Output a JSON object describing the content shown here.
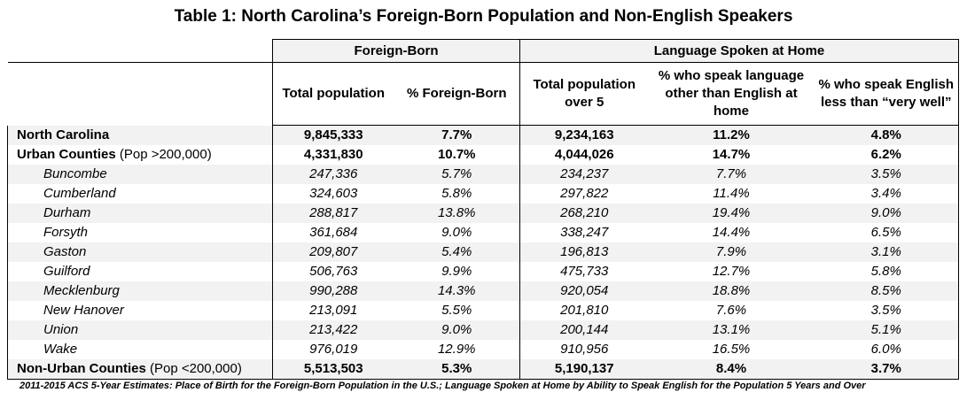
{
  "title": "Table 1: North Carolina’s Foreign-Born Population and Non-English Speakers",
  "groups": {
    "foreign_born": "Foreign-Born",
    "language": "Language Spoken at Home"
  },
  "columns": {
    "fb_total": "Total population",
    "fb_pct": "% Foreign-Born",
    "lang_total": "Total population over 5",
    "lang_other": "% who speak language other than English at home",
    "lang_less": "% who speak English less than “very well”"
  },
  "rows": [
    {
      "name": "North Carolina",
      "note": "",
      "bold": true,
      "values": [
        "9,845,333",
        "7.7%",
        "9,234,163",
        "11.2%",
        "4.8%"
      ]
    },
    {
      "name": "Urban Counties",
      "note": " (Pop >200,000)",
      "bold": true,
      "values": [
        "4,331,830",
        "10.7%",
        "4,044,026",
        "14.7%",
        "6.2%"
      ]
    },
    {
      "name": "Buncombe",
      "note": "",
      "bold": false,
      "values": [
        "247,336",
        "5.7%",
        "234,237",
        "7.7%",
        "3.5%"
      ]
    },
    {
      "name": "Cumberland",
      "note": "",
      "bold": false,
      "values": [
        "324,603",
        "5.8%",
        "297,822",
        "11.4%",
        "3.4%"
      ]
    },
    {
      "name": "Durham",
      "note": "",
      "bold": false,
      "values": [
        "288,817",
        "13.8%",
        "268,210",
        "19.4%",
        "9.0%"
      ]
    },
    {
      "name": "Forsyth",
      "note": "",
      "bold": false,
      "values": [
        "361,684",
        "9.0%",
        "338,247",
        "14.4%",
        "6.5%"
      ]
    },
    {
      "name": "Gaston",
      "note": "",
      "bold": false,
      "values": [
        "209,807",
        "5.4%",
        "196,813",
        "7.9%",
        "3.1%"
      ]
    },
    {
      "name": "Guilford",
      "note": "",
      "bold": false,
      "values": [
        "506,763",
        "9.9%",
        "475,733",
        "12.7%",
        "5.8%"
      ]
    },
    {
      "name": "Mecklenburg",
      "note": "",
      "bold": false,
      "values": [
        "990,288",
        "14.3%",
        "920,054",
        "18.8%",
        "8.5%"
      ]
    },
    {
      "name": "New Hanover",
      "note": "",
      "bold": false,
      "values": [
        "213,091",
        "5.5%",
        "201,810",
        "7.6%",
        "3.5%"
      ]
    },
    {
      "name": "Union",
      "note": "",
      "bold": false,
      "values": [
        "213,422",
        "9.0%",
        "200,144",
        "13.1%",
        "5.1%"
      ]
    },
    {
      "name": "Wake",
      "note": "",
      "bold": false,
      "values": [
        "976,019",
        "12.9%",
        "910,956",
        "16.5%",
        "6.0%"
      ]
    },
    {
      "name": "Non-Urban Counties",
      "note": " (Pop <200,000)",
      "bold": true,
      "values": [
        "5,513,503",
        "5.3%",
        "5,190,137",
        "8.4%",
        "3.7%"
      ]
    }
  ],
  "footnote": "2011-2015 ACS 5-Year Estimates: Place of Birth for the Foreign-Born Population in the U.S.; Language Spoken at Home by Ability to Speak English for the Population 5 Years and Over",
  "colors": {
    "row_shade": "#f2f2f2",
    "border": "#000000"
  }
}
